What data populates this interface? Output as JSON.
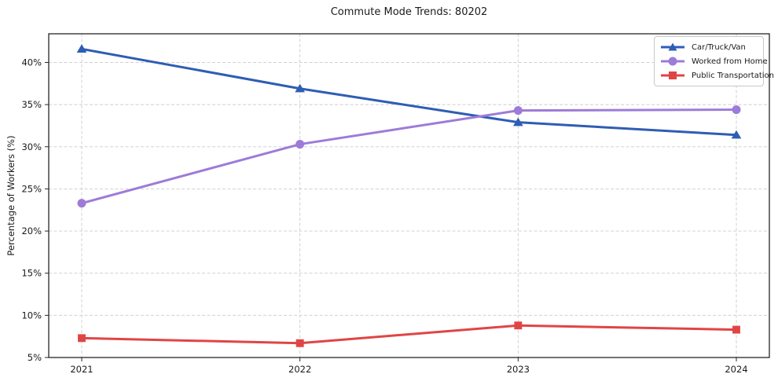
{
  "figure": {
    "title": "Commute Mode Trends: 80202"
  },
  "chart_data": {
    "type": "line",
    "title": "Commute Mode Trends: 80202",
    "xlabel": "",
    "ylabel": "Percentage of Workers (%)",
    "categories": [
      "2021",
      "2022",
      "2023",
      "2024"
    ],
    "series": [
      {
        "name": "Car/Truck/Van",
        "color": "#2e5db4",
        "marker": "triangle",
        "values": [
          41.6,
          36.9,
          32.9,
          31.4
        ]
      },
      {
        "name": "Worked from Home",
        "color": "#9d7bd8",
        "marker": "circle",
        "values": [
          23.3,
          30.3,
          34.3,
          34.4
        ]
      },
      {
        "name": "Public Transportation",
        "color": "#e04545",
        "marker": "square",
        "values": [
          7.3,
          6.7,
          8.8,
          8.3
        ]
      }
    ],
    "ylim": [
      5,
      43.4
    ],
    "yticks": [
      5,
      10,
      15,
      20,
      25,
      30,
      35,
      40
    ],
    "ytick_labels": [
      "5%",
      "10%",
      "15%",
      "20%",
      "25%",
      "30%",
      "35%",
      "40%"
    ],
    "grid": true,
    "grid_color": "#cccccc",
    "spine_color": "#262626",
    "legend_position": "upper right"
  }
}
